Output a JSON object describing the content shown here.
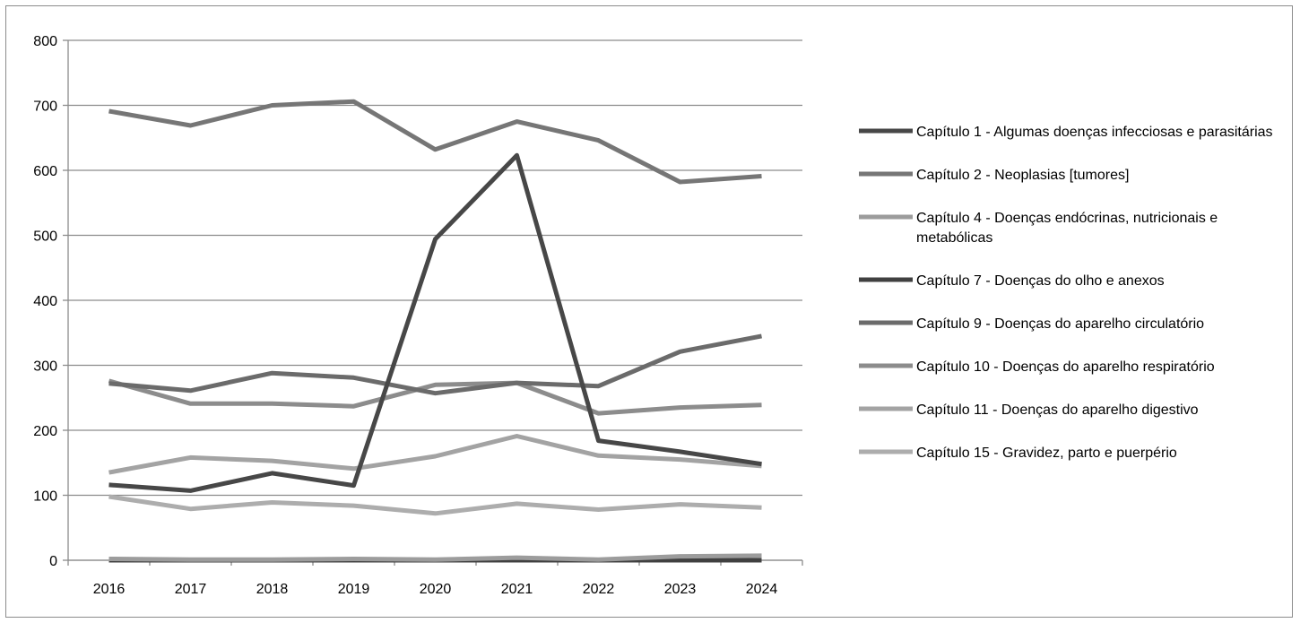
{
  "chart_data": {
    "type": "line",
    "title": "",
    "xlabel": "",
    "ylabel": "",
    "categories": [
      "2016",
      "2017",
      "2018",
      "2019",
      "2020",
      "2021",
      "2022",
      "2023",
      "2024"
    ],
    "ylim": [
      0,
      800
    ],
    "yticks": [
      0,
      100,
      200,
      300,
      400,
      500,
      600,
      700,
      800
    ],
    "grid": "horizontal",
    "legend_position": "right",
    "series": [
      {
        "name": "Capítulo  1 - Algumas doenças infecciosas e parasitárias",
        "color": "#474747",
        "values": [
          116,
          107,
          134,
          115,
          494,
          623,
          184,
          167,
          148
        ]
      },
      {
        "name": "Capítulo  2 - Neoplasias [tumores]",
        "color": "#767676",
        "values": [
          691,
          669,
          700,
          706,
          632,
          675,
          646,
          582,
          591
        ]
      },
      {
        "name": "Capítulo  4 - Doenças endócrinas, nutricionais e metabólicas",
        "color": "#9c9c9c",
        "values": [
          2,
          1,
          1,
          2,
          1,
          4,
          1,
          6,
          7
        ]
      },
      {
        "name": "Capítulo  7 - Doenças do olho e anexos",
        "color": "#404040",
        "values": [
          0,
          0,
          0,
          0,
          0,
          0,
          0,
          0,
          0
        ]
      },
      {
        "name": "Capítulo  9 - Doenças do aparelho circulatório",
        "color": "#6b6b6b",
        "values": [
          272,
          261,
          288,
          281,
          257,
          273,
          268,
          321,
          345
        ]
      },
      {
        "name": "Capítulo 10 - Doenças do aparelho respiratório",
        "color": "#8c8c8c",
        "values": [
          276,
          241,
          241,
          237,
          270,
          273,
          226,
          235,
          239
        ]
      },
      {
        "name": "Capítulo 11 - Doenças do aparelho digestivo",
        "color": "#a3a3a3",
        "values": [
          135,
          158,
          153,
          141,
          160,
          191,
          161,
          155,
          145
        ]
      },
      {
        "name": "Capítulo 15 - Gravidez, parto e puerpério",
        "color": "#adadad",
        "values": [
          98,
          79,
          89,
          84,
          72,
          87,
          78,
          86,
          81
        ]
      }
    ]
  }
}
